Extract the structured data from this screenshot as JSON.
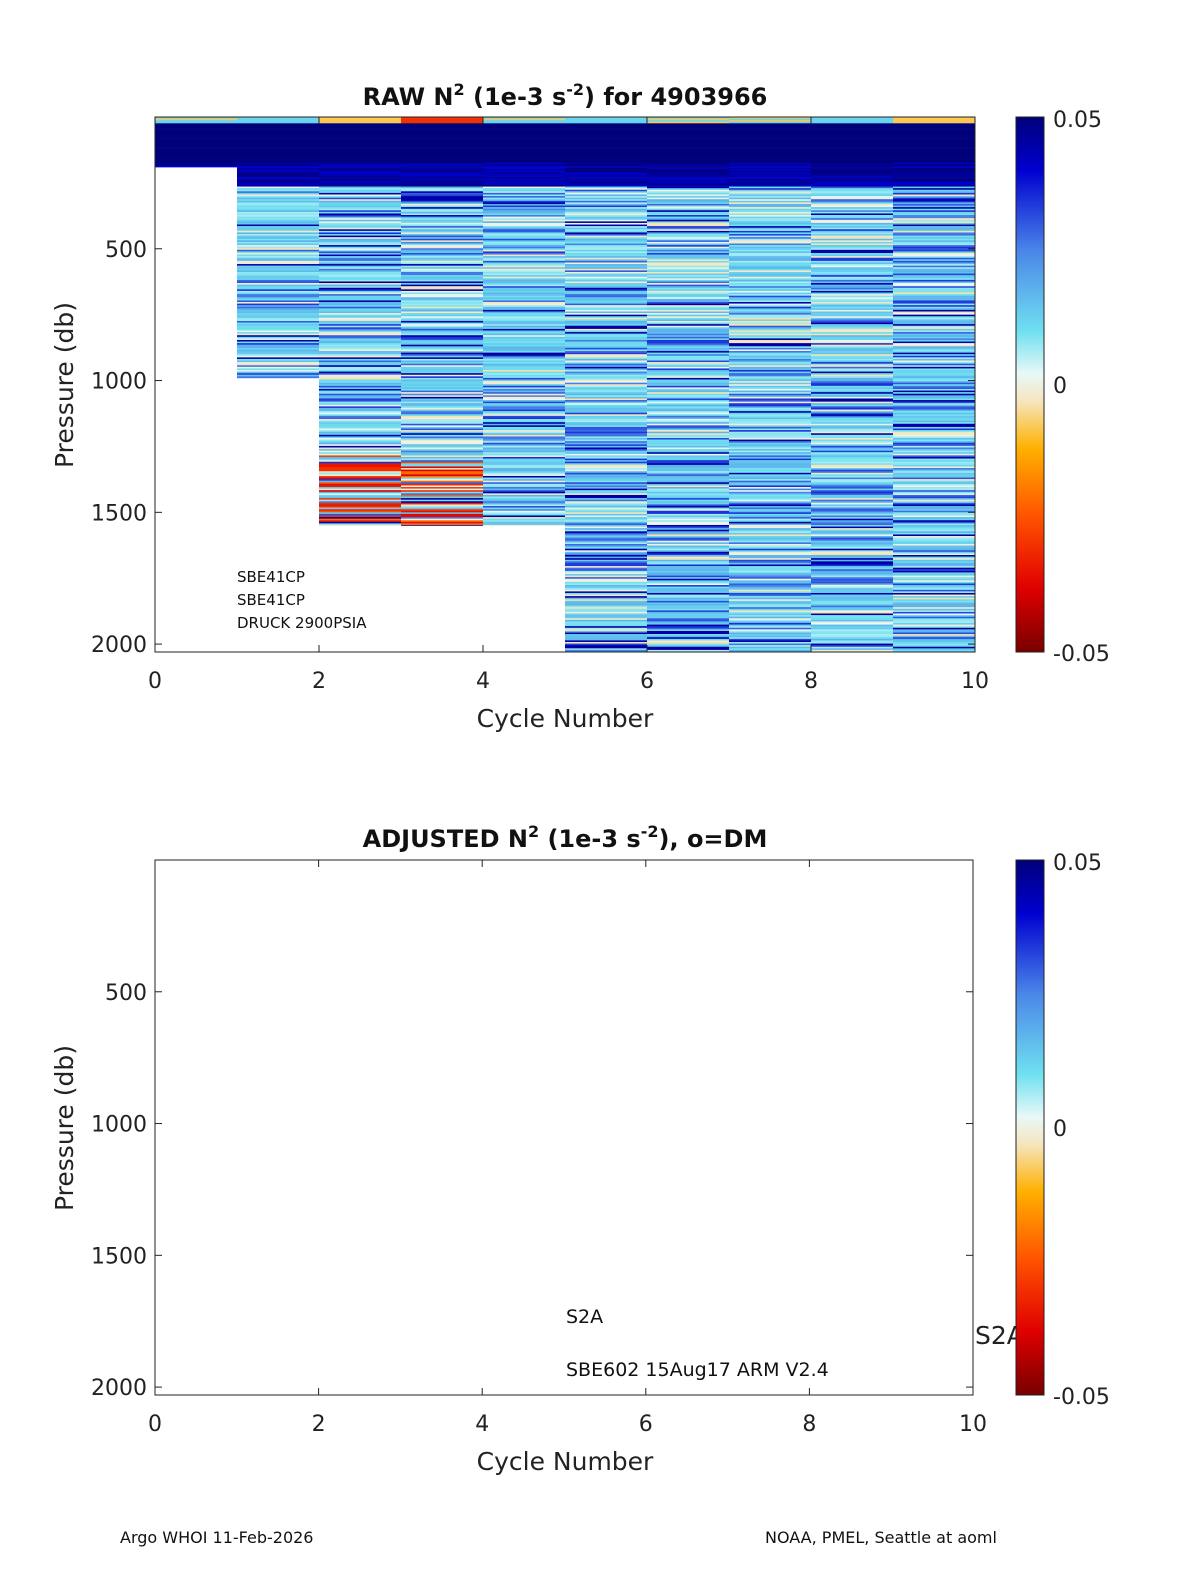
{
  "chart_data": [
    {
      "type": "heatmap",
      "title": "RAW N",
      "title_sup": "2",
      "title_mid": " (1e-3 s",
      "title_sup2": "-2",
      "title_end": ") for 4903966",
      "xlabel": "Cycle Number",
      "ylabel": "Pressure (db)",
      "xlim": [
        0,
        10
      ],
      "ylim": [
        2030,
        0
      ],
      "xticks": [
        0,
        2,
        4,
        6,
        8,
        10
      ],
      "yticks": [
        500,
        1000,
        1500,
        2000
      ],
      "colorbar": {
        "min": -0.05,
        "max": 0.05,
        "ticks": [
          "0.05",
          "0",
          "-0.05"
        ]
      },
      "profiles": [
        {
          "cycle": 0,
          "max_pressure": 190
        },
        {
          "cycle": 1,
          "max_pressure": 990
        },
        {
          "cycle": 2,
          "max_pressure": 1550
        },
        {
          "cycle": 3,
          "max_pressure": 1550
        },
        {
          "cycle": 4,
          "max_pressure": 1550
        },
        {
          "cycle": 5,
          "max_pressure": 2030
        },
        {
          "cycle": 6,
          "max_pressure": 2030
        },
        {
          "cycle": 7,
          "max_pressure": 2030
        },
        {
          "cycle": 8,
          "max_pressure": 2030
        },
        {
          "cycle": 9,
          "max_pressure": 2030
        }
      ],
      "annotations": [
        "SBE41CP",
        "SBE41CP",
        "DRUCK 2900PSIA"
      ]
    },
    {
      "type": "heatmap",
      "title": "ADJUSTED N",
      "title_sup": "2",
      "title_mid": " (1e-3 s",
      "title_sup2": "-2",
      "title_end": "), o=DM",
      "xlabel": "Cycle Number",
      "ylabel": "Pressure (db)",
      "xlim": [
        0,
        10
      ],
      "ylim": [
        2030,
        0
      ],
      "xticks": [
        0,
        2,
        4,
        6,
        8,
        10
      ],
      "yticks": [
        500,
        1000,
        1500,
        2000
      ],
      "colorbar": {
        "min": -0.05,
        "max": 0.05,
        "ticks": [
          "0.05",
          "0",
          "-0.05"
        ]
      },
      "profiles": [],
      "annotations": [
        "S2A",
        "SBE602 15Aug17 ARM V2.4"
      ],
      "side_label": "S2A"
    }
  ],
  "footer": {
    "left": "Argo WHOI 11-Feb-2026",
    "right": "NOAA, PMEL, Seattle at aoml"
  }
}
